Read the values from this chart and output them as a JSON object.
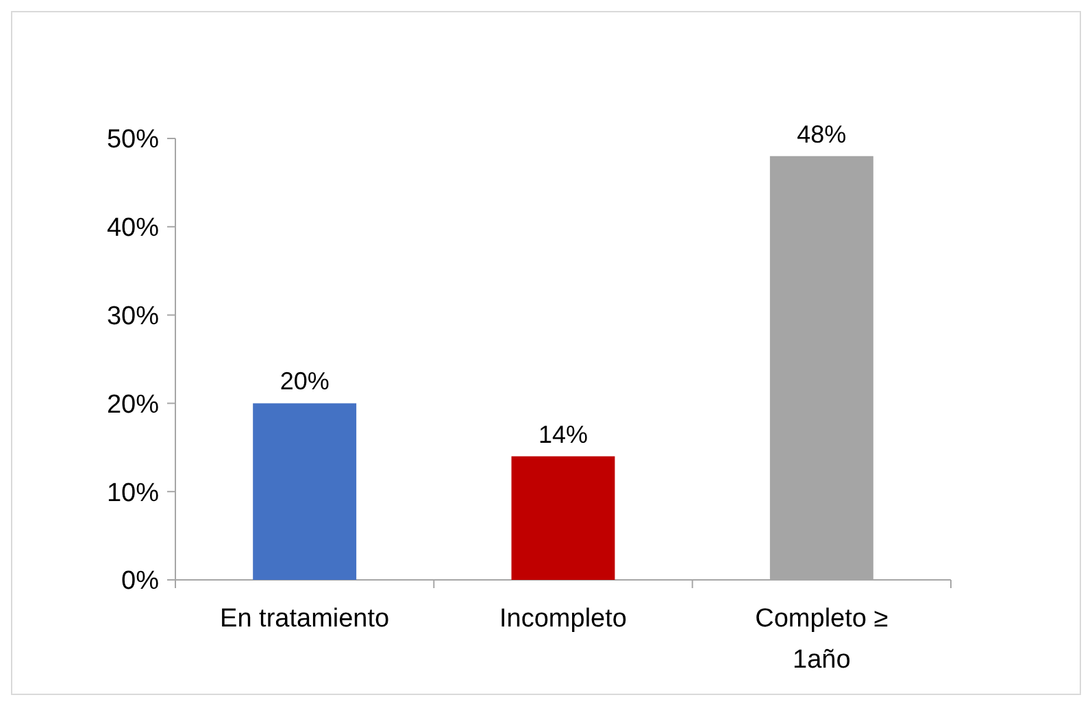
{
  "chart_data": {
    "type": "bar",
    "categories": [
      "En tratamiento",
      "Incompleto",
      "Completo ≥ 1año"
    ],
    "values": [
      20,
      14,
      48
    ],
    "colors": [
      "#4472c4",
      "#c00000",
      "#a5a5a5"
    ],
    "value_labels": [
      "20%",
      "14%",
      "48%"
    ],
    "ylim": [
      0,
      50
    ],
    "yticks": [
      {
        "value": 0,
        "label": "0%"
      },
      {
        "value": 10,
        "label": "10%"
      },
      {
        "value": 20,
        "label": "20%"
      },
      {
        "value": 30,
        "label": "30%"
      },
      {
        "value": 40,
        "label": "40%"
      },
      {
        "value": 50,
        "label": "50%"
      }
    ],
    "grid": false
  }
}
